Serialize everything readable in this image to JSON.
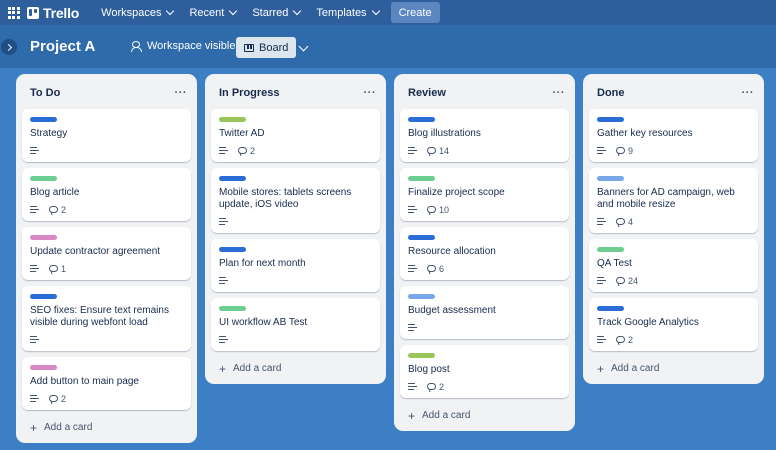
{
  "topnav": {
    "logo_text": "Trello",
    "menus": [
      {
        "label": "Workspaces"
      },
      {
        "label": "Recent"
      },
      {
        "label": "Starred"
      },
      {
        "label": "Templates"
      }
    ],
    "create_label": "Create"
  },
  "board": {
    "title": "Project A",
    "visibility": "Workspace visible",
    "view": "Board"
  },
  "colors": {
    "blue": "#2c6cd7",
    "green": "#6ccf91",
    "pink": "#d888c4",
    "lime": "#9ac55a",
    "lightblue": "#7aa7e8"
  },
  "add_card_label": "Add a card",
  "list_menu": "···",
  "lists": [
    {
      "title": "To Do",
      "cards": [
        {
          "label_color": "blue",
          "title": "Strategy",
          "comments": ""
        },
        {
          "label_color": "green",
          "title": "Blog article",
          "comments": "2"
        },
        {
          "label_color": "pink",
          "title": "Update contractor agreement",
          "comments": "1"
        },
        {
          "label_color": "blue",
          "title": "SEO fixes: Ensure text remains visible during webfont load",
          "comments": ""
        },
        {
          "label_color": "pink",
          "title": "Add button to main page",
          "comments": "2"
        }
      ]
    },
    {
      "title": "In Progress",
      "cards": [
        {
          "label_color": "lime",
          "title": "Twitter AD",
          "comments": "2"
        },
        {
          "label_color": "blue",
          "title": "Mobile stores: tablets screens update, iOS video",
          "comments": ""
        },
        {
          "label_color": "blue",
          "title": "Plan for next month",
          "comments": ""
        },
        {
          "label_color": "green",
          "title": "UI workflow AB Test",
          "comments": ""
        }
      ]
    },
    {
      "title": "Review",
      "cards": [
        {
          "label_color": "blue",
          "title": "Blog illustrations",
          "comments": "14"
        },
        {
          "label_color": "green",
          "title": "Finalize project scope",
          "comments": "10"
        },
        {
          "label_color": "blue",
          "title": "Resource allocation",
          "comments": "6"
        },
        {
          "label_color": "lightblue",
          "title": "Budget assessment",
          "comments": ""
        },
        {
          "label_color": "lime",
          "title": "Blog post",
          "comments": "2"
        }
      ]
    },
    {
      "title": "Done",
      "cards": [
        {
          "label_color": "blue",
          "title": "Gather key resources",
          "comments": "9"
        },
        {
          "label_color": "lightblue",
          "title": "Banners for AD campaign, web and mobile resize",
          "comments": "4"
        },
        {
          "label_color": "green",
          "title": "QA Test",
          "comments": "24"
        },
        {
          "label_color": "blue",
          "title": "Track Google Analytics",
          "comments": "2"
        }
      ]
    }
  ]
}
